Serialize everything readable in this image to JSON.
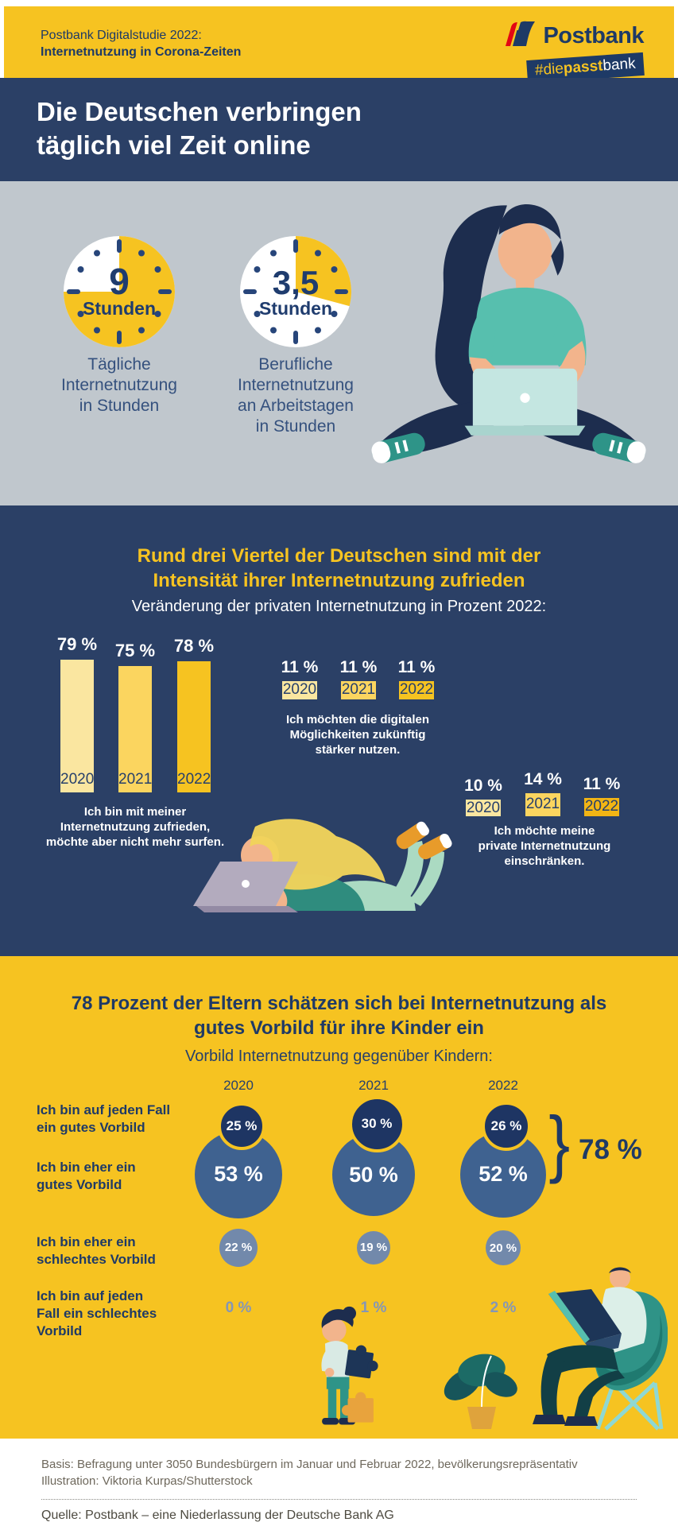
{
  "header": {
    "kicker_line1": "Postbank Digitalstudie 2022:",
    "kicker_line2": "Internetnutzung in Corona-Zeiten",
    "brand": "Postbank",
    "badge_part1": "#die",
    "badge_part2": "passt",
    "badge_part3": "bank"
  },
  "banner": {
    "line1": "Die Deutschen verbringen",
    "line2": "täglich viel Zeit online"
  },
  "time_section": {
    "clocks": [
      {
        "value": "9",
        "unit": "Stunden",
        "caption_lines": [
          "Tägliche",
          "Internetnutzung",
          "in Stunden"
        ]
      },
      {
        "value": "3,5",
        "unit": "Stunden",
        "caption_lines": [
          "Berufliche",
          "Internetnutzung",
          "an Arbeitstagen",
          "in Stunden"
        ]
      }
    ]
  },
  "satisfaction_section": {
    "title_line1": "Rund drei Viertel der Deutschen sind mit der",
    "title_line2": "Intensität ihrer Internetnutzung zufrieden",
    "subtitle": "Veränderung der privaten Internetnutzung in Prozent 2022:",
    "bars": {
      "items": [
        {
          "pct": "79 %",
          "year": "2020",
          "color": "#FAE6A0"
        },
        {
          "pct": "75 %",
          "year": "2021",
          "color": "#FBD55F"
        },
        {
          "pct": "78 %",
          "year": "2022",
          "color": "#F6C321"
        }
      ],
      "caption_lines": [
        "Ich bin mit meiner",
        "Internetnutzung zufrieden,",
        "möchte aber nicht mehr surfen."
      ]
    },
    "group_digital": {
      "items": [
        {
          "pct": "11 %",
          "year": "2020",
          "color": "#FAE6A0"
        },
        {
          "pct": "11 %",
          "year": "2021",
          "color": "#FBD55F"
        },
        {
          "pct": "11 %",
          "year": "2022",
          "color": "#F6C321"
        }
      ],
      "caption_lines": [
        "Ich möchten die digitalen",
        "Möglichkeiten zukünftig",
        "stärker nutzen."
      ]
    },
    "group_restrict": {
      "items": [
        {
          "pct": "10 %",
          "year": "2020",
          "color": "#FAE6A0"
        },
        {
          "pct": "14 %",
          "year": "2021",
          "color": "#FBD55F"
        },
        {
          "pct": "11 %",
          "year": "2022",
          "color": "#F2B515"
        }
      ],
      "caption_lines": [
        "Ich möchte meine",
        "private Internetnutzung",
        "einschränken."
      ]
    }
  },
  "vorbild_section": {
    "title_line1": "78 Prozent der Eltern schätzen sich bei Internetnutzung als",
    "title_line2": "gutes Vorbild für ihre Kinder ein",
    "subtitle": "Vorbild Internetnutzung gegenüber Kindern:",
    "years": [
      "2020",
      "2021",
      "2022"
    ],
    "rows": [
      {
        "label_lines": [
          "Ich bin auf jeden Fall",
          "ein gutes Vorbild"
        ],
        "values": [
          "25 %",
          "30 %",
          "26 %"
        ]
      },
      {
        "label_lines": [
          "Ich bin eher ein",
          "gutes Vorbild"
        ],
        "values": [
          "53 %",
          "50 %",
          "52 %"
        ]
      },
      {
        "label_lines": [
          "Ich bin eher ein",
          "schlechtes Vorbild"
        ],
        "values": [
          "22 %",
          "19 %",
          "20 %"
        ]
      },
      {
        "label_lines": [
          "Ich bin auf jeden",
          "Fall ein schlechtes",
          "Vorbild"
        ],
        "values": [
          "0 %",
          "1 %",
          "2 %"
        ]
      }
    ],
    "total": "78 %",
    "brace": "}"
  },
  "footer": {
    "basis": "Basis: Befragung unter 3050 Bundesbürgern im Januar und Februar 2022, bevölkerungsrepräsentativ",
    "illustration": "Illustration: Viktoria Kurpas/Shutterstock",
    "quelle": "Quelle: Postbank – eine Niederlassung der Deutsche Bank AG"
  },
  "chart_data": [
    {
      "type": "pie",
      "title": "Tägliche Internetnutzung in Stunden",
      "value": 9,
      "total": 12,
      "unit": "Stunden",
      "label": "9"
    },
    {
      "type": "pie",
      "title": "Berufliche Internetnutzung an Arbeitstagen in Stunden",
      "value": 3.5,
      "total": 12,
      "unit": "Stunden",
      "label": "3,5"
    },
    {
      "type": "bar",
      "title": "Ich bin mit meiner Internetnutzung zufrieden, möchte aber nicht mehr surfen.",
      "categories": [
        "2020",
        "2021",
        "2022"
      ],
      "values": [
        79,
        75,
        78
      ],
      "unit": "%",
      "ylim": [
        0,
        100
      ]
    },
    {
      "type": "bar",
      "title": "Ich möchten die digitalen Möglichkeiten zukünftig stärker nutzen.",
      "categories": [
        "2020",
        "2021",
        "2022"
      ],
      "values": [
        11,
        11,
        11
      ],
      "unit": "%"
    },
    {
      "type": "bar",
      "title": "Ich möchte meine private Internetnutzung einschränken.",
      "categories": [
        "2020",
        "2021",
        "2022"
      ],
      "values": [
        10,
        14,
        11
      ],
      "unit": "%"
    },
    {
      "type": "table",
      "title": "Vorbild Internetnutzung gegenüber Kindern:",
      "columns": [
        "2020",
        "2021",
        "2022"
      ],
      "rows": [
        {
          "label": "Ich bin auf jeden Fall ein gutes Vorbild",
          "values": [
            25,
            30,
            26
          ]
        },
        {
          "label": "Ich bin eher ein gutes Vorbild",
          "values": [
            53,
            50,
            52
          ]
        },
        {
          "label": "Ich bin eher ein schlechtes Vorbild",
          "values": [
            22,
            19,
            20
          ]
        },
        {
          "label": "Ich bin auf jeden Fall ein schlechtes Vorbild",
          "values": [
            0,
            1,
            2
          ]
        }
      ],
      "annotation": "78 %"
    }
  ]
}
